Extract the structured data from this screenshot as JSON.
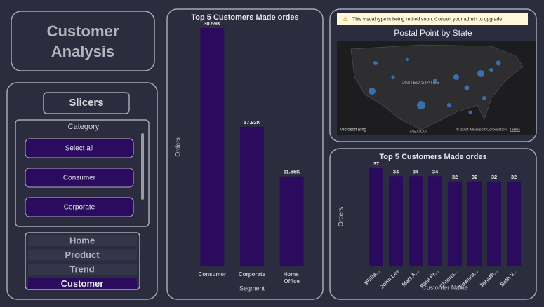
{
  "header": {
    "title_line1": "Customer",
    "title_line2": "Analysis"
  },
  "slicers": {
    "title": "Slicers",
    "category_title": "Category",
    "options": [
      "Select all",
      "Consumer",
      "Corporate"
    ]
  },
  "nav": [
    "Home",
    "Product",
    "Trend",
    "Customer"
  ],
  "map": {
    "warning": "This visual type is being retired soon. Contact your admin to upgrade.",
    "title": "Postal Point by State",
    "country": "UNITED STATES",
    "country2": "MEXICO",
    "brand": "Microsoft Bing",
    "copyright": "© 2024 Microsoft Corporation",
    "terms": "Terms"
  },
  "chart_data": [
    {
      "type": "bar",
      "title": "Top 5 Customers Made ordes",
      "x_label": "Segment",
      "y_label": "Orders",
      "categories": [
        "Consumer",
        "Corporate",
        "Home Office"
      ],
      "values": [
        30590,
        17920,
        11550
      ],
      "value_labels": [
        "30.59K",
        "17.92K",
        "11.55K"
      ],
      "color": "#2a0b5e"
    },
    {
      "type": "bar",
      "title": "Top 5 Customers Made ordes",
      "x_label": "Customer Name",
      "y_label": "Orders",
      "categories": [
        "Willia...",
        "John Lee",
        "Matt A...",
        "Paul Pr...",
        "Chloris...",
        "Edward...",
        "Jonath...",
        "Seth V..."
      ],
      "values": [
        37,
        34,
        34,
        34,
        32,
        32,
        32,
        32
      ],
      "color": "#2a0b5e"
    }
  ]
}
